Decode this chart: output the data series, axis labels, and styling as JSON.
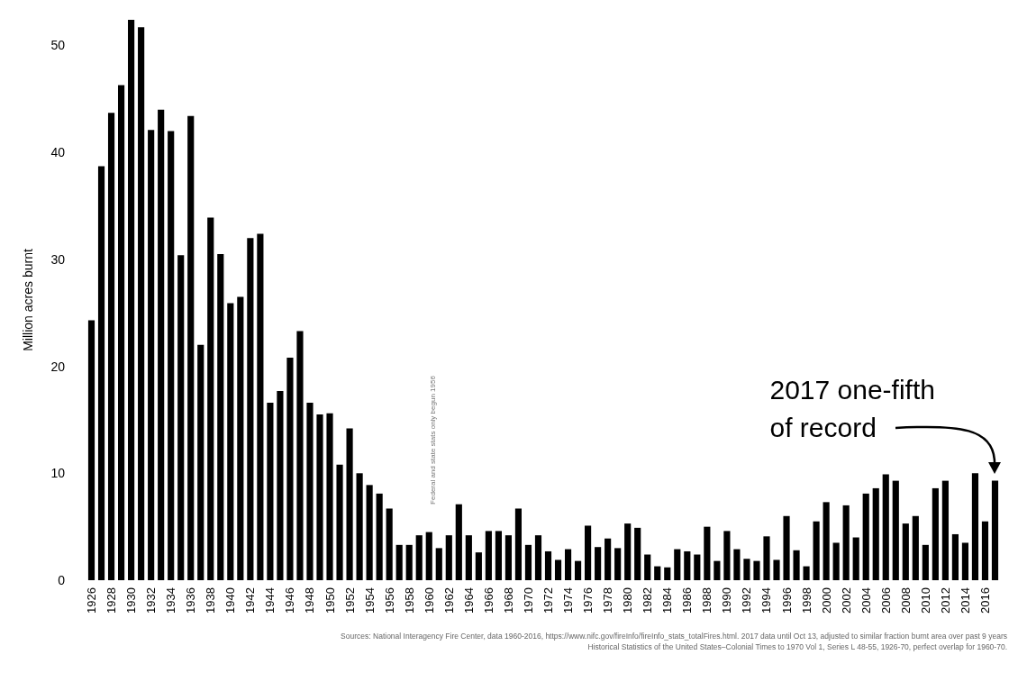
{
  "chart_data": {
    "type": "bar",
    "ylabel": "Million acres burnt",
    "categories": [
      "1926",
      null,
      "1928",
      null,
      "1930",
      null,
      "1932",
      null,
      "1934",
      null,
      "1936",
      null,
      "1938",
      null,
      "1940",
      null,
      "1942",
      null,
      "1944",
      null,
      "1946",
      null,
      "1948",
      null,
      "1950",
      null,
      "1952",
      null,
      "1954",
      null,
      "1956",
      null,
      "1958",
      null,
      "1960",
      null,
      "1962",
      null,
      "1964",
      null,
      "1966",
      null,
      "1968",
      null,
      "1970",
      null,
      "1972",
      null,
      "1974",
      null,
      "1976",
      null,
      "1978",
      null,
      "1980",
      null,
      "1982",
      null,
      "1984",
      null,
      "1986",
      null,
      "1988",
      null,
      "1990",
      null,
      "1992",
      null,
      "1994",
      null,
      "1996",
      null,
      "1998",
      null,
      "2000",
      null,
      "2002",
      null,
      "2004",
      null,
      "2006",
      null,
      "2008",
      null,
      "2010",
      null,
      "2012",
      null,
      "2014",
      null,
      "2016",
      null
    ],
    "values": [
      24.3,
      38.7,
      43.7,
      46.3,
      52.4,
      51.7,
      42.1,
      44.0,
      42.0,
      30.4,
      43.4,
      22.0,
      33.9,
      30.5,
      25.9,
      26.5,
      32.0,
      32.4,
      16.6,
      17.7,
      20.8,
      23.3,
      16.6,
      15.5,
      15.6,
      10.8,
      14.2,
      10.0,
      8.9,
      8.1,
      6.7,
      3.3,
      3.3,
      4.2,
      4.5,
      3.0,
      4.2,
      7.1,
      4.2,
      2.6,
      4.6,
      4.6,
      4.2,
      6.7,
      3.3,
      4.2,
      2.7,
      1.9,
      2.9,
      1.8,
      5.1,
      3.1,
      3.9,
      3.0,
      5.3,
      4.9,
      2.4,
      1.3,
      1.2,
      2.9,
      2.7,
      2.4,
      5.0,
      1.8,
      4.6,
      2.9,
      2.0,
      1.8,
      4.1,
      1.9,
      6.0,
      2.8,
      1.3,
      5.5,
      7.3,
      3.5,
      7.0,
      4.0,
      8.1,
      8.6,
      9.9,
      9.3,
      5.3,
      6.0,
      3.3,
      8.6,
      9.3,
      4.3,
      3.5,
      10.0,
      5.5,
      9.3
    ],
    "color": "#000000",
    "ylim": [
      0,
      52.4
    ],
    "yticks": [
      0,
      10,
      20,
      30,
      40,
      50
    ],
    "grid": false,
    "annotations": [
      "Federal and state stats only begun 1956",
      "2017 one-fifth\nof record",
      "Sources: National Interagency Fire Center, data 1960-2016, https://www.nifc.gov/fireInfo/fireInfo_stats_totalFires.html. 2017 data until Oct 13, adjusted to similar fraction burnt area over past 9 years",
      "Historical Statistics of the United States–Colonial Times to 1970 Vol 1, Series L 48-55, 1926-70, perfect overlap for 1960-70."
    ]
  }
}
